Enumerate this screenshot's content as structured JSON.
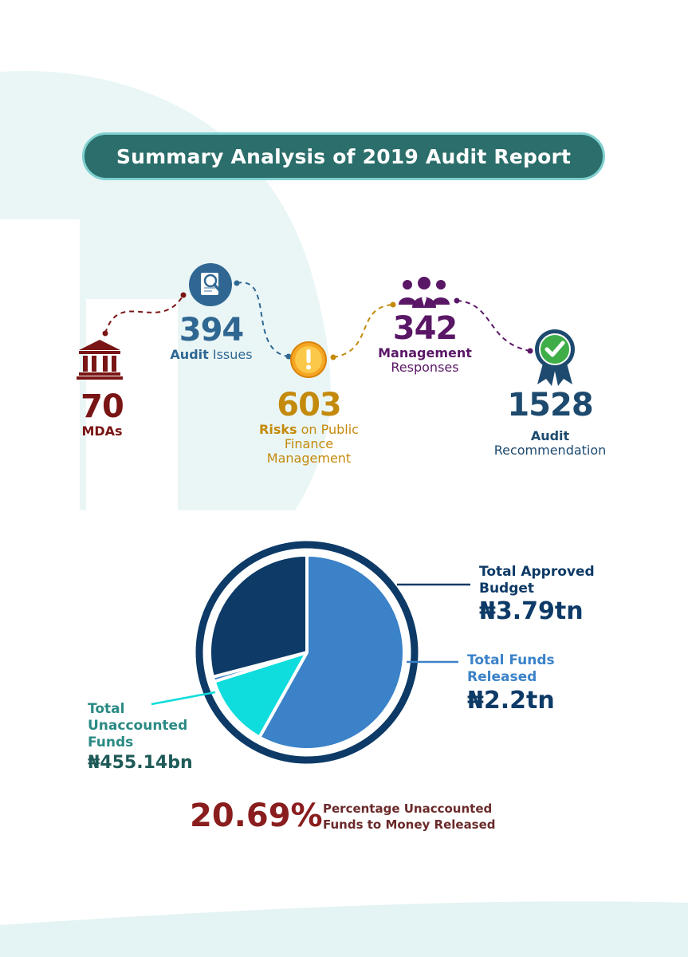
{
  "header": {
    "title": "Summary Analysis of 2019 Audit Report"
  },
  "stats": {
    "mdas": {
      "value": "70",
      "label": "MDAs",
      "icon": "government-building-icon",
      "color": "#7a1515"
    },
    "audit_issues": {
      "value": "394",
      "label_bold": "Audit",
      "label_rest": " Issues",
      "icon": "document-magnifier-icon",
      "color": "#2f6792"
    },
    "risks": {
      "value": "603",
      "label_bold": "Risks",
      "label_rest": " on Public",
      "label_line2": "Finance",
      "label_line3": "Management",
      "icon": "warning-exclamation-icon",
      "color": "#c48a0c"
    },
    "management": {
      "value": "342",
      "label_line1": "Management",
      "label_line2": "Responses",
      "icon": "people-group-icon",
      "color": "#5a1766"
    },
    "recommendation": {
      "value": "1528",
      "label_line1": "Audit",
      "label_line2": "Recommendation",
      "icon": "checkmark-ribbon-icon",
      "color": "#1d4a6e"
    }
  },
  "chart_data": {
    "type": "pie",
    "title": "",
    "slices": [
      {
        "label": "Total Funds Released",
        "value": 2.2,
        "unit": "tn",
        "display": "₦2.2tn",
        "color": "#3b82c8"
      },
      {
        "label": "Total Unaccounted Funds",
        "value": 0.45514,
        "unit": "tn",
        "display": "₦455.14bn",
        "color": "#0fdcdc"
      },
      {
        "label": "Other",
        "value": 0.03,
        "unit": "tn",
        "display": "",
        "color": "#3b82c8"
      },
      {
        "label": "Total Approved Budget (remainder)",
        "value": 1.1,
        "unit": "tn",
        "display": "",
        "color": "#0d3a66"
      }
    ],
    "total": {
      "label": "Total Approved Budget",
      "value": 3.79,
      "unit": "tn",
      "display": "₦3.79tn"
    },
    "legend": [
      {
        "line1": "Total Approved",
        "line2": "Budget",
        "value": "₦3.79tn",
        "color": "#0d3a66",
        "value_color": "#0d3a66"
      },
      {
        "line1": "Total Funds",
        "line2": "Released",
        "value": "₦2.2tn",
        "color": "#3b82c8",
        "value_color": "#0d3a66"
      },
      {
        "line1": "Total",
        "line2": "Unaccounted",
        "line3": "Funds",
        "value": "₦455.14bn",
        "color": "#2a8a84",
        "value_color": "#1e5a57"
      }
    ]
  },
  "summary": {
    "percentage": "20.69%",
    "label_line1": "Percentage Unaccounted",
    "label_line2": "Funds to Money Released"
  }
}
